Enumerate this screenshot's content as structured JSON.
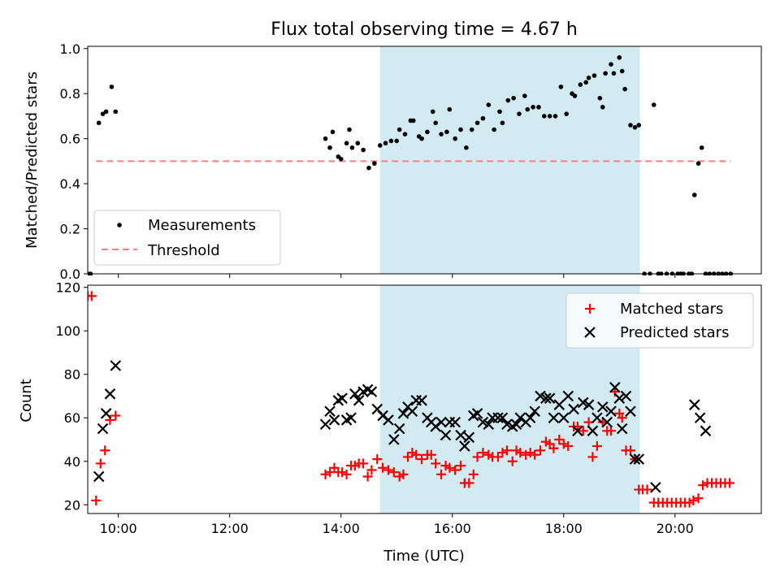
{
  "title": "Flux total observing time = 4.67 h",
  "colors": {
    "measurement": "#000000",
    "threshold": "#ff7f7f",
    "matched": "#ff0000",
    "predicted": "#000000",
    "span": "#add8e6"
  },
  "chart_data": [
    {
      "type": "scatter",
      "ylabel": "Matched/Predicted stars",
      "xlim": [
        9.45,
        21.55
      ],
      "ylim": [
        0,
        1.01
      ],
      "x_ticks": [
        10,
        12,
        14,
        16,
        18,
        20
      ],
      "y_ticks": [
        0.0,
        0.2,
        0.4,
        0.6,
        0.8,
        1.0
      ],
      "y_tick_labels": [
        "0.0",
        "0.2",
        "0.4",
        "0.6",
        "0.8",
        "1.0"
      ],
      "highlight_span": [
        14.7,
        19.37
      ],
      "legend": {
        "position": "lower-left",
        "measurements_label": "Measurements",
        "threshold_label": "Threshold"
      },
      "threshold": {
        "value": 0.5,
        "x_range": [
          9.6,
          21.0
        ]
      },
      "series": [
        {
          "name": "Measurements",
          "x": [
            9.38,
            9.45,
            9.5,
            9.65,
            9.72,
            9.78,
            9.88,
            9.95,
            13.72,
            13.8,
            13.85,
            13.95,
            14.0,
            14.1,
            14.15,
            14.2,
            14.3,
            14.4,
            14.5,
            14.6,
            14.7,
            14.8,
            14.9,
            15.0,
            15.05,
            15.15,
            15.25,
            15.3,
            15.4,
            15.45,
            15.55,
            15.65,
            15.7,
            15.8,
            15.9,
            15.95,
            16.05,
            16.15,
            16.25,
            16.35,
            16.45,
            16.55,
            16.65,
            16.75,
            16.85,
            16.9,
            17.0,
            17.1,
            17.2,
            17.3,
            17.35,
            17.45,
            17.55,
            17.65,
            17.75,
            17.85,
            17.95,
            18.05,
            18.15,
            18.2,
            18.3,
            18.4,
            18.45,
            18.55,
            18.65,
            18.7,
            18.75,
            18.85,
            18.9,
            19.0,
            19.05,
            19.1,
            19.2,
            19.28,
            19.35,
            19.45,
            19.55,
            19.62,
            19.7,
            19.75,
            19.85,
            19.95,
            20.05,
            20.1,
            20.15,
            20.25,
            20.3,
            20.35,
            20.42,
            20.48,
            20.55,
            20.62,
            20.7,
            20.78,
            20.85,
            20.92,
            21.0
          ],
          "y": [
            0,
            0,
            0,
            0.67,
            0.71,
            0.72,
            0.83,
            0.72,
            0.6,
            0.56,
            0.63,
            0.52,
            0.51,
            0.58,
            0.64,
            0.56,
            0.58,
            0.55,
            0.47,
            0.49,
            0.57,
            0.58,
            0.59,
            0.59,
            0.64,
            0.62,
            0.68,
            0.68,
            0.61,
            0.6,
            0.63,
            0.72,
            0.67,
            0.62,
            0.63,
            0.73,
            0.6,
            0.64,
            0.56,
            0.64,
            0.67,
            0.69,
            0.75,
            0.64,
            0.72,
            0.67,
            0.77,
            0.78,
            0.71,
            0.79,
            0.73,
            0.74,
            0.74,
            0.7,
            0.7,
            0.7,
            0.83,
            0.71,
            0.8,
            0.79,
            0.84,
            0.85,
            0.87,
            0.88,
            0.78,
            0.74,
            0.89,
            0.93,
            0.89,
            0.96,
            0.9,
            0.82,
            0.66,
            0.65,
            0.66,
            0,
            0,
            0.75,
            0,
            0,
            0,
            0,
            0,
            0,
            0,
            0,
            0,
            0.35,
            0.49,
            0.56,
            0,
            0,
            0,
            0,
            0,
            0,
            0
          ]
        }
      ]
    },
    {
      "type": "scatter",
      "xlabel": "Time (UTC)",
      "ylabel": "Count",
      "xlim": [
        9.45,
        21.55
      ],
      "ylim": [
        16,
        121
      ],
      "x_ticks": [
        10,
        12,
        14,
        16,
        18,
        20
      ],
      "x_tick_labels": [
        "10:00",
        "12:00",
        "14:00",
        "16:00",
        "18:00",
        "20:00"
      ],
      "y_ticks": [
        20,
        40,
        60,
        80,
        100,
        120
      ],
      "highlight_span": [
        14.7,
        19.37
      ],
      "legend": {
        "position": "top-right"
      },
      "series": [
        {
          "name": "Matched stars",
          "x": [
            9.38,
            9.45,
            9.52,
            9.6,
            9.68,
            9.76,
            9.85,
            9.95,
            13.72,
            13.8,
            13.88,
            13.95,
            14.02,
            14.1,
            14.18,
            14.25,
            14.32,
            14.4,
            14.48,
            14.55,
            14.65,
            14.75,
            14.85,
            14.95,
            15.05,
            15.12,
            15.2,
            15.28,
            15.35,
            15.45,
            15.55,
            15.62,
            15.7,
            15.8,
            15.88,
            15.95,
            16.05,
            16.15,
            16.22,
            16.3,
            16.38,
            16.45,
            16.55,
            16.65,
            16.72,
            16.82,
            16.9,
            16.98,
            17.08,
            17.15,
            17.22,
            17.32,
            17.4,
            17.48,
            17.58,
            17.68,
            17.75,
            17.82,
            17.92,
            18.0,
            18.08,
            18.18,
            18.25,
            18.35,
            18.45,
            18.52,
            18.6,
            18.7,
            18.78,
            18.85,
            18.92,
            19.0,
            19.05,
            19.12,
            19.2,
            19.28,
            19.35,
            19.42,
            19.5,
            19.62,
            19.7,
            19.78,
            19.86,
            19.94,
            20.02,
            20.1,
            20.18,
            20.26,
            20.33,
            20.42,
            20.5,
            20.58,
            20.66,
            20.74,
            20.82,
            20.9,
            20.98
          ],
          "y": [
            116,
            116,
            116,
            22,
            39,
            45,
            59,
            61,
            34,
            35,
            37,
            35,
            35,
            34,
            38,
            38,
            39,
            39,
            33,
            36,
            41,
            37,
            36,
            35,
            33,
            34,
            42,
            44,
            43,
            41,
            43,
            43,
            39,
            34,
            38,
            37,
            36,
            38,
            30,
            30,
            34,
            42,
            44,
            43,
            42,
            42,
            44,
            45,
            40,
            45,
            44,
            43,
            44,
            43,
            45,
            49,
            48,
            46,
            50,
            48,
            47,
            56,
            56,
            54,
            58,
            42,
            47,
            58,
            54,
            54,
            72,
            62,
            60,
            45,
            45,
            41,
            27,
            27,
            27,
            21,
            21,
            21,
            21,
            21,
            21,
            21,
            21,
            21,
            22,
            23,
            29,
            30,
            30,
            30,
            30,
            30,
            30
          ]
        },
        {
          "name": "Predicted stars",
          "x": [
            9.65,
            9.72,
            9.78,
            9.85,
            9.95,
            13.72,
            13.8,
            13.88,
            13.95,
            14.02,
            14.1,
            14.18,
            14.25,
            14.32,
            14.4,
            14.48,
            14.55,
            14.65,
            14.75,
            14.85,
            14.95,
            15.05,
            15.12,
            15.2,
            15.28,
            15.35,
            15.45,
            15.55,
            15.62,
            15.7,
            15.8,
            15.88,
            15.95,
            16.05,
            16.15,
            16.22,
            16.3,
            16.38,
            16.45,
            16.55,
            16.65,
            16.72,
            16.82,
            16.9,
            16.98,
            17.08,
            17.15,
            17.22,
            17.32,
            17.4,
            17.48,
            17.58,
            17.68,
            17.75,
            17.82,
            17.92,
            18.0,
            18.08,
            18.18,
            18.25,
            18.35,
            18.45,
            18.52,
            18.6,
            18.7,
            18.78,
            18.85,
            18.92,
            19.0,
            19.05,
            19.12,
            19.2,
            19.28,
            19.35,
            19.65,
            20.35,
            20.45,
            20.55
          ],
          "y": [
            33,
            55,
            62,
            71,
            84,
            57,
            63,
            59,
            68,
            69,
            59,
            60,
            71,
            68,
            72,
            73,
            72,
            64,
            61,
            59,
            50,
            55,
            62,
            65,
            63,
            68,
            68,
            60,
            58,
            56,
            58,
            52,
            58,
            58,
            52,
            47,
            51,
            61,
            62,
            58,
            57,
            60,
            60,
            60,
            57,
            56,
            57,
            60,
            58,
            60,
            63,
            70,
            69,
            69,
            60,
            66,
            60,
            70,
            64,
            54,
            67,
            66,
            54,
            60,
            65,
            58,
            63,
            74,
            69,
            55,
            70,
            63,
            41,
            41,
            28,
            66,
            60,
            54
          ]
        }
      ]
    }
  ]
}
